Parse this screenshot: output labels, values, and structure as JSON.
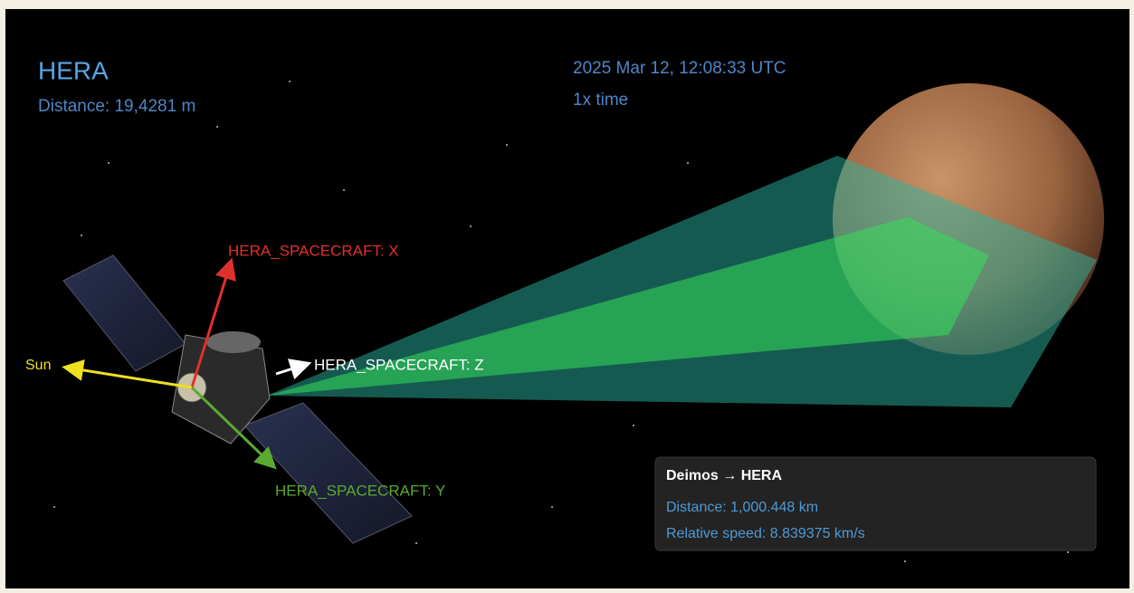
{
  "header": {
    "title": "HERA",
    "distance": "Distance: 19,4281 m"
  },
  "clock": {
    "date": "2025 Mar 12, 12:08:33 UTC",
    "rate": "1x time"
  },
  "labels": {
    "x_axis": "HERA_SPACECRAFT: X",
    "y_axis": "HERA_SPACECRAFT: Y",
    "z_axis": "HERA_SPACECRAFT: Z",
    "sun": "Sun"
  },
  "panel": {
    "title": "Deimos → HERA",
    "distance": "Distance: 1,000.448 km",
    "speed": "Relative speed: 8.839375 km/s"
  }
}
